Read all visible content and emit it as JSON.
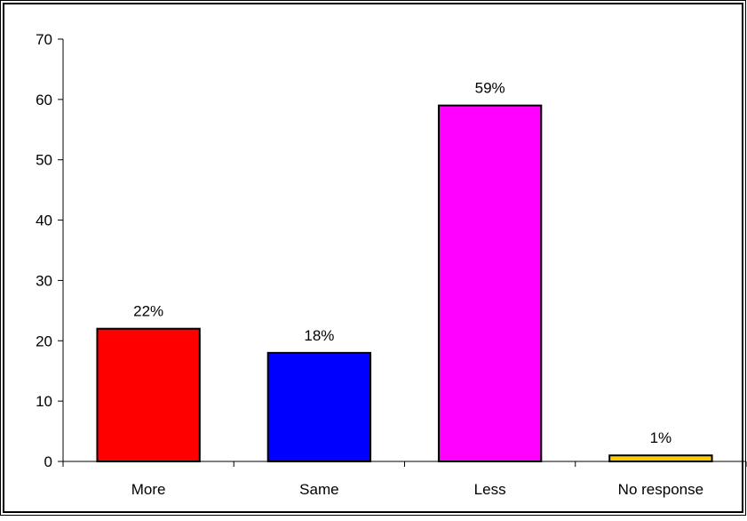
{
  "chart_data": {
    "type": "bar",
    "title": "",
    "xlabel": "",
    "ylabel": "",
    "categories": [
      "More",
      "Same",
      "Less",
      "No response"
    ],
    "values": [
      22,
      18,
      59,
      1
    ],
    "data_labels": [
      "22%",
      "18%",
      "59%",
      "1%"
    ],
    "bar_colors": [
      "#ff0000",
      "#0000ff",
      "#ff00ff",
      "#ffcc00"
    ],
    "ylim": [
      0,
      70
    ],
    "yticks": [
      0,
      10,
      20,
      30,
      40,
      50,
      60,
      70
    ],
    "ytick_labels": [
      "0",
      "10",
      "20",
      "30",
      "40",
      "50",
      "60",
      "70"
    ],
    "grid": false,
    "legend": "none"
  }
}
